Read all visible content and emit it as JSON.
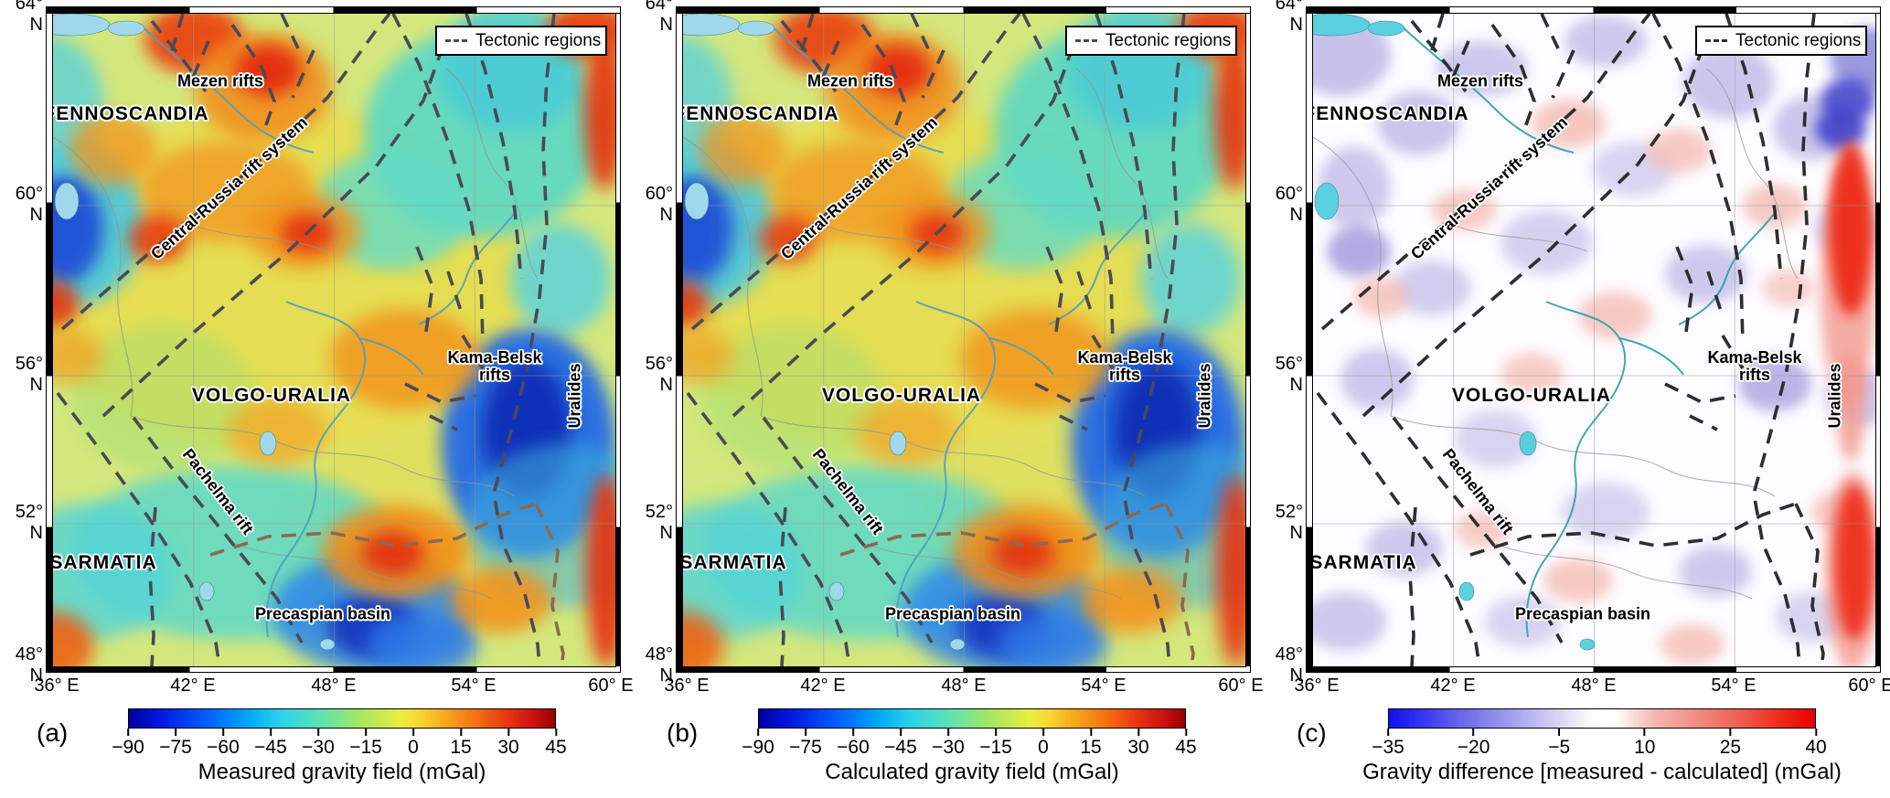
{
  "figure": {
    "legend_label": "Tectonic regions",
    "lat_ticks": [
      "64° N",
      "60° N",
      "56° N",
      "52° N",
      "48° N"
    ],
    "lon_ticks": [
      "36° E",
      "42° E",
      "48° E",
      "54° E",
      "60° E"
    ],
    "map_labels": {
      "fennoscandia": "FENNOSCANDIA",
      "mezen_rifts": "Mezen rifts",
      "central_russia_rift": "Central-Russia rift system",
      "volgo_uralia": "VOLGO-URALIA",
      "kama_belsk_line1": "Kama-Belsk",
      "kama_belsk_line2": "rifts",
      "uralides": "Uralides",
      "pachelma_rift": "Pachelma rift",
      "sarmatia": "SARMATIA",
      "precaspian_basin": "Precaspian basin"
    },
    "panels": [
      {
        "letter": "(a)",
        "colorbar": {
          "title": "Measured gravity field (mGal)",
          "ticks": [
            "−90",
            "−75",
            "−60",
            "−45",
            "−30",
            "−15",
            "0",
            "15",
            "30",
            "45"
          ]
        }
      },
      {
        "letter": "(b)",
        "colorbar": {
          "title": "Calculated gravity field (mGal)",
          "ticks": [
            "−90",
            "−75",
            "−60",
            "−45",
            "−30",
            "−15",
            "0",
            "15",
            "30",
            "45"
          ]
        }
      },
      {
        "letter": "(c)",
        "colorbar": {
          "title": "Gravity difference [measured - calculated] (mGal)",
          "ticks": [
            "−35",
            "−20",
            "−5",
            "10",
            "25",
            "40"
          ]
        }
      }
    ]
  }
}
